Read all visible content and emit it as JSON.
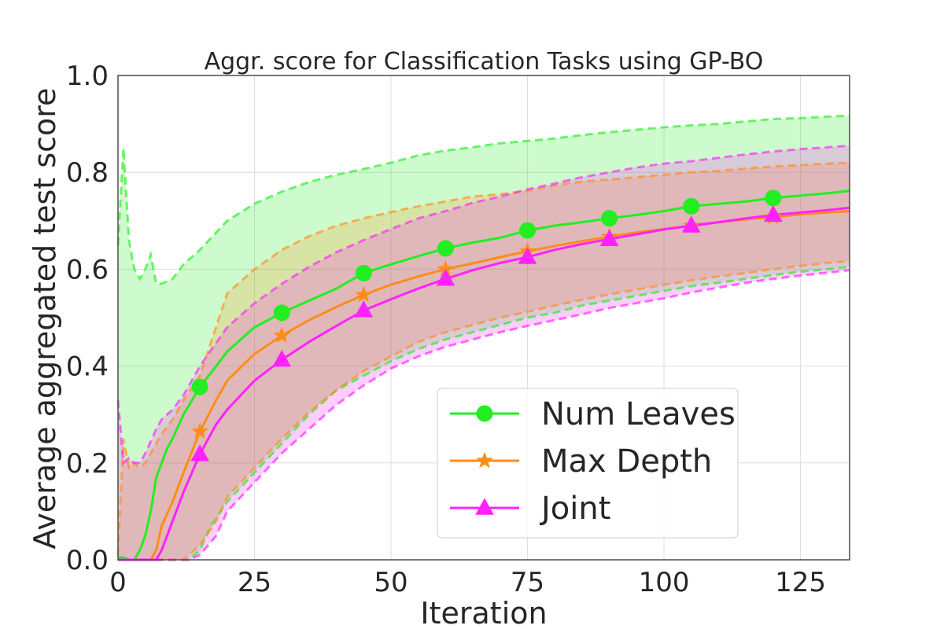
{
  "chart_data": {
    "type": "line",
    "title": "Aggr. score for Classification Tasks using GP-BO",
    "xlabel": "Iteration",
    "ylabel": "Average aggregated test score",
    "xlim": [
      0,
      134
    ],
    "ylim": [
      0.0,
      1.0
    ],
    "xticks": [
      0,
      25,
      50,
      75,
      100,
      125
    ],
    "yticks": [
      0.0,
      0.2,
      0.4,
      0.6,
      0.8,
      1.0
    ],
    "xtick_labels": [
      "0",
      "25",
      "50",
      "75",
      "100",
      "125"
    ],
    "ytick_labels": [
      "0.0",
      "0.2",
      "0.4",
      "0.6",
      "0.8",
      "1.0"
    ],
    "grid": true,
    "legend_position": "lower-right",
    "series": [
      {
        "name": "Num Leaves",
        "color": "#22ee22",
        "marker": "circle",
        "marker_x": [
          15,
          30,
          45,
          60,
          75,
          90,
          105,
          120
        ],
        "mean": [
          [
            0,
            0.005
          ],
          [
            1,
            0.005
          ],
          [
            2,
            0
          ],
          [
            3,
            0
          ],
          [
            4,
            0.02
          ],
          [
            5,
            0.05
          ],
          [
            6,
            0.1
          ],
          [
            7,
            0.17
          ],
          [
            8,
            0.2
          ],
          [
            9,
            0.23
          ],
          [
            10,
            0.25
          ],
          [
            12,
            0.3
          ],
          [
            15,
            0.357
          ],
          [
            18,
            0.4
          ],
          [
            20,
            0.43
          ],
          [
            25,
            0.48
          ],
          [
            30,
            0.51
          ],
          [
            35,
            0.535
          ],
          [
            40,
            0.56
          ],
          [
            45,
            0.592
          ],
          [
            50,
            0.61
          ],
          [
            55,
            0.627
          ],
          [
            60,
            0.643
          ],
          [
            65,
            0.655
          ],
          [
            70,
            0.665
          ],
          [
            75,
            0.68
          ],
          [
            80,
            0.69
          ],
          [
            85,
            0.697
          ],
          [
            90,
            0.705
          ],
          [
            95,
            0.712
          ],
          [
            100,
            0.72
          ],
          [
            105,
            0.73
          ],
          [
            110,
            0.735
          ],
          [
            115,
            0.74
          ],
          [
            120,
            0.747
          ],
          [
            125,
            0.752
          ],
          [
            130,
            0.757
          ],
          [
            134,
            0.762
          ]
        ],
        "upper": [
          [
            0,
            0.65
          ],
          [
            1,
            0.85
          ],
          [
            2,
            0.66
          ],
          [
            3,
            0.6
          ],
          [
            4,
            0.58
          ],
          [
            5,
            0.6
          ],
          [
            6,
            0.63
          ],
          [
            7,
            0.57
          ],
          [
            8,
            0.57
          ],
          [
            10,
            0.58
          ],
          [
            12,
            0.61
          ],
          [
            15,
            0.64
          ],
          [
            20,
            0.7
          ],
          [
            25,
            0.735
          ],
          [
            30,
            0.76
          ],
          [
            35,
            0.78
          ],
          [
            40,
            0.795
          ],
          [
            45,
            0.807
          ],
          [
            50,
            0.82
          ],
          [
            55,
            0.835
          ],
          [
            60,
            0.845
          ],
          [
            65,
            0.852
          ],
          [
            70,
            0.86
          ],
          [
            75,
            0.865
          ],
          [
            80,
            0.87
          ],
          [
            85,
            0.877
          ],
          [
            90,
            0.883
          ],
          [
            95,
            0.888
          ],
          [
            100,
            0.893
          ],
          [
            105,
            0.897
          ],
          [
            110,
            0.9
          ],
          [
            115,
            0.905
          ],
          [
            120,
            0.91
          ],
          [
            125,
            0.912
          ],
          [
            130,
            0.915
          ],
          [
            134,
            0.917
          ]
        ],
        "lower": [
          [
            0,
            0
          ],
          [
            13,
            0
          ],
          [
            15,
            0.02
          ],
          [
            17,
            0.07
          ],
          [
            20,
            0.12
          ],
          [
            25,
            0.18
          ],
          [
            30,
            0.24
          ],
          [
            35,
            0.3
          ],
          [
            40,
            0.35
          ],
          [
            45,
            0.38
          ],
          [
            50,
            0.41
          ],
          [
            55,
            0.435
          ],
          [
            60,
            0.455
          ],
          [
            65,
            0.47
          ],
          [
            70,
            0.485
          ],
          [
            75,
            0.5
          ],
          [
            80,
            0.51
          ],
          [
            85,
            0.525
          ],
          [
            90,
            0.535
          ],
          [
            95,
            0.545
          ],
          [
            100,
            0.555
          ],
          [
            105,
            0.565
          ],
          [
            110,
            0.572
          ],
          [
            115,
            0.58
          ],
          [
            120,
            0.588
          ],
          [
            125,
            0.595
          ],
          [
            130,
            0.6
          ],
          [
            134,
            0.605
          ]
        ]
      },
      {
        "name": "Max Depth",
        "color": "#ff8c1a",
        "marker": "star",
        "marker_x": [
          15,
          30,
          45,
          60,
          75,
          90,
          105,
          120
        ],
        "mean": [
          [
            0,
            0
          ],
          [
            6,
            0
          ],
          [
            7,
            0.02
          ],
          [
            8,
            0.07
          ],
          [
            10,
            0.12
          ],
          [
            12,
            0.18
          ],
          [
            15,
            0.265
          ],
          [
            18,
            0.33
          ],
          [
            20,
            0.37
          ],
          [
            25,
            0.425
          ],
          [
            30,
            0.463
          ],
          [
            35,
            0.495
          ],
          [
            40,
            0.522
          ],
          [
            45,
            0.547
          ],
          [
            50,
            0.568
          ],
          [
            55,
            0.585
          ],
          [
            60,
            0.6
          ],
          [
            65,
            0.612
          ],
          [
            70,
            0.625
          ],
          [
            75,
            0.637
          ],
          [
            80,
            0.648
          ],
          [
            85,
            0.658
          ],
          [
            90,
            0.667
          ],
          [
            95,
            0.676
          ],
          [
            100,
            0.683
          ],
          [
            105,
            0.69
          ],
          [
            110,
            0.697
          ],
          [
            115,
            0.703
          ],
          [
            120,
            0.708
          ],
          [
            125,
            0.713
          ],
          [
            130,
            0.717
          ],
          [
            134,
            0.72
          ]
        ],
        "upper": [
          [
            0,
            0.01
          ],
          [
            1,
            0.25
          ],
          [
            2,
            0.19
          ],
          [
            3,
            0.2
          ],
          [
            4,
            0.19
          ],
          [
            5,
            0.2
          ],
          [
            6,
            0.22
          ],
          [
            8,
            0.26
          ],
          [
            10,
            0.29
          ],
          [
            12,
            0.33
          ],
          [
            15,
            0.38
          ],
          [
            20,
            0.55
          ],
          [
            25,
            0.6
          ],
          [
            30,
            0.64
          ],
          [
            35,
            0.668
          ],
          [
            40,
            0.69
          ],
          [
            45,
            0.705
          ],
          [
            50,
            0.718
          ],
          [
            55,
            0.73
          ],
          [
            60,
            0.74
          ],
          [
            65,
            0.75
          ],
          [
            70,
            0.755
          ],
          [
            75,
            0.762
          ],
          [
            80,
            0.773
          ],
          [
            85,
            0.781
          ],
          [
            90,
            0.785
          ],
          [
            95,
            0.79
          ],
          [
            100,
            0.795
          ],
          [
            105,
            0.8
          ],
          [
            110,
            0.803
          ],
          [
            115,
            0.808
          ],
          [
            120,
            0.812
          ],
          [
            125,
            0.815
          ],
          [
            130,
            0.818
          ],
          [
            134,
            0.82
          ]
        ],
        "lower": [
          [
            0,
            0
          ],
          [
            12,
            0
          ],
          [
            15,
            0.03
          ],
          [
            18,
            0.08
          ],
          [
            20,
            0.13
          ],
          [
            25,
            0.19
          ],
          [
            30,
            0.25
          ],
          [
            35,
            0.305
          ],
          [
            40,
            0.35
          ],
          [
            45,
            0.39
          ],
          [
            50,
            0.42
          ],
          [
            55,
            0.45
          ],
          [
            60,
            0.47
          ],
          [
            65,
            0.485
          ],
          [
            70,
            0.5
          ],
          [
            75,
            0.512
          ],
          [
            80,
            0.525
          ],
          [
            85,
            0.537
          ],
          [
            90,
            0.548
          ],
          [
            95,
            0.558
          ],
          [
            100,
            0.568
          ],
          [
            105,
            0.577
          ],
          [
            110,
            0.585
          ],
          [
            115,
            0.592
          ],
          [
            120,
            0.6
          ],
          [
            125,
            0.607
          ],
          [
            130,
            0.613
          ],
          [
            134,
            0.617
          ]
        ]
      },
      {
        "name": "Joint",
        "color": "#ff22ff",
        "marker": "triangle",
        "marker_x": [
          15,
          30,
          45,
          60,
          75,
          90,
          105,
          120
        ],
        "mean": [
          [
            0,
            0
          ],
          [
            7,
            0
          ],
          [
            8,
            0.02
          ],
          [
            10,
            0.08
          ],
          [
            12,
            0.14
          ],
          [
            15,
            0.218
          ],
          [
            18,
            0.28
          ],
          [
            20,
            0.31
          ],
          [
            25,
            0.37
          ],
          [
            30,
            0.413
          ],
          [
            35,
            0.45
          ],
          [
            40,
            0.483
          ],
          [
            45,
            0.515
          ],
          [
            50,
            0.538
          ],
          [
            55,
            0.56
          ],
          [
            60,
            0.58
          ],
          [
            65,
            0.598
          ],
          [
            70,
            0.613
          ],
          [
            75,
            0.625
          ],
          [
            80,
            0.64
          ],
          [
            85,
            0.652
          ],
          [
            90,
            0.662
          ],
          [
            95,
            0.672
          ],
          [
            100,
            0.682
          ],
          [
            105,
            0.69
          ],
          [
            110,
            0.697
          ],
          [
            115,
            0.705
          ],
          [
            120,
            0.712
          ],
          [
            125,
            0.717
          ],
          [
            130,
            0.722
          ],
          [
            134,
            0.727
          ]
        ],
        "upper": [
          [
            0,
            0.33
          ],
          [
            1,
            0.2
          ],
          [
            2,
            0.21
          ],
          [
            3,
            0.2
          ],
          [
            4,
            0.2
          ],
          [
            5,
            0.22
          ],
          [
            7,
            0.27
          ],
          [
            8,
            0.29
          ],
          [
            10,
            0.31
          ],
          [
            12,
            0.34
          ],
          [
            15,
            0.4
          ],
          [
            20,
            0.48
          ],
          [
            25,
            0.53
          ],
          [
            30,
            0.57
          ],
          [
            35,
            0.605
          ],
          [
            40,
            0.635
          ],
          [
            45,
            0.66
          ],
          [
            50,
            0.683
          ],
          [
            55,
            0.705
          ],
          [
            60,
            0.72
          ],
          [
            65,
            0.737
          ],
          [
            70,
            0.75
          ],
          [
            75,
            0.765
          ],
          [
            80,
            0.777
          ],
          [
            85,
            0.79
          ],
          [
            90,
            0.8
          ],
          [
            95,
            0.81
          ],
          [
            100,
            0.818
          ],
          [
            105,
            0.823
          ],
          [
            110,
            0.83
          ],
          [
            115,
            0.837
          ],
          [
            120,
            0.843
          ],
          [
            125,
            0.848
          ],
          [
            130,
            0.852
          ],
          [
            134,
            0.855
          ]
        ],
        "lower": [
          [
            0,
            0
          ],
          [
            13,
            0
          ],
          [
            15,
            0.01
          ],
          [
            18,
            0.05
          ],
          [
            20,
            0.1
          ],
          [
            25,
            0.16
          ],
          [
            30,
            0.22
          ],
          [
            35,
            0.27
          ],
          [
            40,
            0.32
          ],
          [
            45,
            0.36
          ],
          [
            50,
            0.395
          ],
          [
            55,
            0.42
          ],
          [
            60,
            0.44
          ],
          [
            65,
            0.455
          ],
          [
            70,
            0.47
          ],
          [
            75,
            0.483
          ],
          [
            80,
            0.495
          ],
          [
            85,
            0.507
          ],
          [
            90,
            0.52
          ],
          [
            95,
            0.53
          ],
          [
            100,
            0.54
          ],
          [
            105,
            0.552
          ],
          [
            110,
            0.562
          ],
          [
            115,
            0.572
          ],
          [
            120,
            0.58
          ],
          [
            125,
            0.587
          ],
          [
            130,
            0.593
          ],
          [
            134,
            0.598
          ]
        ]
      }
    ]
  }
}
